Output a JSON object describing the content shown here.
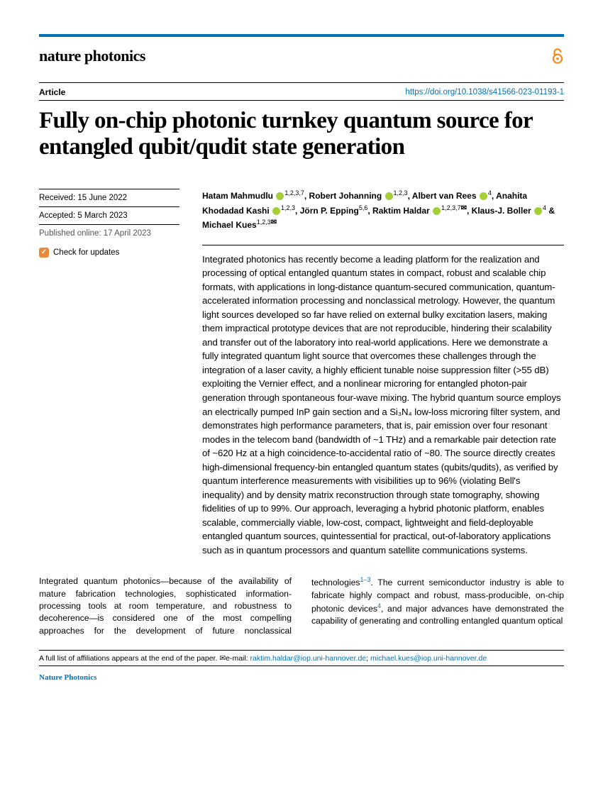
{
  "journal": "nature photonics",
  "article_label": "Article",
  "doi_text": "https://doi.org/10.1038/s41566-023-01193-1",
  "title": "Fully on-chip photonic turnkey quantum source for entangled qubit/qudit state generation",
  "meta": {
    "received": "Received: 15 June 2022",
    "accepted": "Accepted: 5 March 2023",
    "published": "Published online: 17 April 2023",
    "check": "Check for updates"
  },
  "authors_html": "Hatam Mahmudlu <span class='orcid'></span><span class='sup'>1,2,3,7</span>, Robert Johanning <span class='orcid'></span><span class='sup'>1,2,3</span>, Albert van Rees <span class='orcid'></span><span class='sup'>4</span>, Anahita Khodadad Kashi <span class='orcid'></span><span class='sup'>1,2,3</span>, Jörn P. Epping<span class='sup'>5,6</span>, Raktim Haldar <span class='orcid'></span><span class='sup'>1,2,3,7</span><span class='mail'>✉</span>, Klaus-J. Boller <span class='orcid'></span><span class='sup'>4</span> & Michael Kues<span class='sup'>1,2,3</span><span class='mail'>✉</span>",
  "abstract": "Integrated photonics has recently become a leading platform for the realization and processing of optical entangled quantum states in compact, robust and scalable chip formats, with applications in long-distance quantum-secured communication, quantum-accelerated information processing and nonclassical metrology. However, the quantum light sources developed so far have relied on external bulky excitation lasers, making them impractical prototype devices that are not reproducible, hindering their scalability and transfer out of the laboratory into real-world applications. Here we demonstrate a fully integrated quantum light source that overcomes these challenges through the integration of a laser cavity, a highly efficient tunable noise suppression filter (>55 dB) exploiting the Vernier effect, and a nonlinear microring for entangled photon-pair generation through spontaneous four-wave mixing. The hybrid quantum source employs an electrically pumped InP gain section and a Si₃N₄ low-loss microring filter system, and demonstrates high performance parameters, that is, pair emission over four resonant modes in the telecom band (bandwidth of ~1 THz) and a remarkable pair detection rate of ~620 Hz at a high coincidence-to-accidental ratio of ~80. The source directly creates high-dimensional frequency-bin entangled quantum states (qubits/qudits), as verified by quantum interference measurements with visibilities up to 96% (violating Bell's inequality) and by density matrix reconstruction through state tomography, showing fidelities of up to 99%. Our approach, leveraging a hybrid photonic platform, enables scalable, commercially viable, low-cost, compact, lightweight and field-deployable entangled quantum sources, quintessential for practical, out-of-laboratory applications such as in quantum processors and quantum satellite communications systems.",
  "body_html": "Integrated quantum photonics—because of the availability of mature fabrication technologies, sophisticated information-processing tools at room temperature, and robustness to decoherence—is considered one of the most compelling approaches for the development of future nonclassical technologies<sup>1–3</sup>. The current semiconductor industry is able to fabricate highly compact and robust, mass-producible, on-chip photonic devices<sup>4</sup>, and major advances have demonstrated the capability of generating and controlling entangled quantum optical",
  "footnote_prefix": "A full list of affiliations appears at the end of the paper. ",
  "footnote_mail_label": "✉e-mail: ",
  "emails": [
    "raktim.haldar@iop.uni-hannover.de",
    "michael.kues@iop.uni-hannover.de"
  ],
  "footer_journal": "Nature Photonics",
  "colors": {
    "accent": "#0072b5",
    "open_access": "#f68b1f"
  }
}
